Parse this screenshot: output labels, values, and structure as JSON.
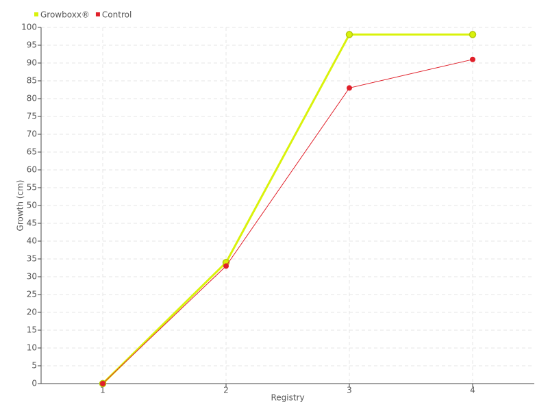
{
  "chart_data": {
    "type": "line",
    "x_label": "Registry",
    "y_label": "Growth (cm)",
    "categories": [
      "1",
      "2",
      "3",
      "4"
    ],
    "series": [
      {
        "name": "Growboxx®",
        "color": "#d9f20b",
        "values": [
          0,
          34,
          98,
          98
        ]
      },
      {
        "name": "Control",
        "color": "#e0202a",
        "values": [
          0,
          33,
          83,
          91
        ]
      }
    ],
    "ylim": [
      0,
      100
    ],
    "yticks": [
      0,
      5,
      10,
      15,
      20,
      25,
      30,
      35,
      40,
      45,
      50,
      55,
      60,
      65,
      70,
      75,
      80,
      85,
      90,
      95,
      100
    ],
    "grid": true,
    "legend": "top-left"
  }
}
